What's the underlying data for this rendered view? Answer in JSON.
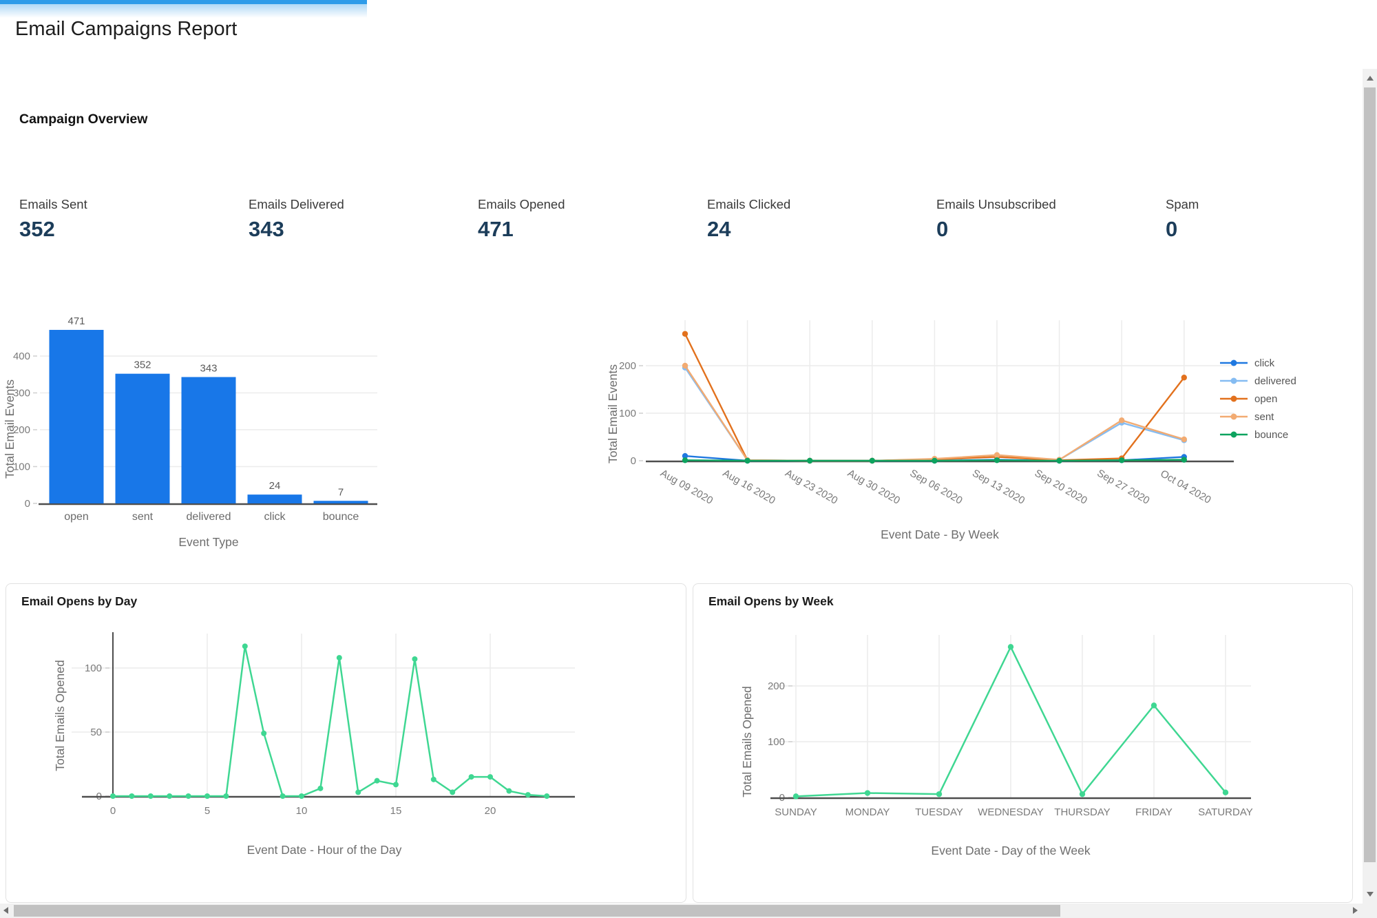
{
  "page": {
    "title": "Email Campaigns Report",
    "section_heading": "Campaign Overview"
  },
  "kpis": [
    {
      "label": "Emails Sent",
      "value": "352"
    },
    {
      "label": "Emails Delivered",
      "value": "343"
    },
    {
      "label": "Emails Opened",
      "value": "471"
    },
    {
      "label": "Emails Clicked",
      "value": "24"
    },
    {
      "label": "Emails Unsubscribed",
      "value": "0"
    },
    {
      "label": "Spam",
      "value": "0"
    }
  ],
  "colors": {
    "bar_blue": "#1877e8",
    "loading_bar": "#2e9ce9",
    "kpi_value_navy": "#1c3d5a",
    "mint_green": "#3fd792",
    "series_click": "#1f78e0",
    "series_delivered": "#85bcf2",
    "series_open": "#e2711d",
    "series_sent": "#f2ab72",
    "series_bounce": "#0da35f"
  },
  "chart_data": [
    {
      "id": "total-events-by-type",
      "type": "bar",
      "title": "",
      "categories": [
        "open",
        "sent",
        "delivered",
        "click",
        "bounce"
      ],
      "values": [
        471,
        352,
        343,
        24,
        7
      ],
      "data_labels": true,
      "xlabel": "Event Type",
      "ylabel": "Total Email Events",
      "yticks": [
        0,
        100,
        200,
        300,
        400
      ],
      "ylim": [
        0,
        480
      ],
      "color": "#1877e8",
      "grid": "horizontal"
    },
    {
      "id": "total-events-by-week",
      "type": "line",
      "title": "",
      "categories": [
        "Aug 09 2020",
        "Aug 16 2020",
        "Aug 23 2020",
        "Aug 30 2020",
        "Sep 06 2020",
        "Sep 13 2020",
        "Sep 20 2020",
        "Sep 27 2020",
        "Oct 04 2020"
      ],
      "series": [
        {
          "name": "click",
          "color": "#1f78e0",
          "values": [
            10,
            0,
            0,
            0,
            0,
            2,
            0,
            1,
            8
          ]
        },
        {
          "name": "delivered",
          "color": "#85bcf2",
          "values": [
            196,
            1,
            0,
            0,
            2,
            8,
            2,
            80,
            43
          ]
        },
        {
          "name": "open",
          "color": "#e2711d",
          "values": [
            267,
            1,
            0,
            0,
            3,
            8,
            1,
            5,
            175
          ]
        },
        {
          "name": "sent",
          "color": "#f2ab72",
          "values": [
            200,
            1,
            0,
            0,
            4,
            12,
            2,
            85,
            45
          ]
        },
        {
          "name": "bounce",
          "color": "#0da35f",
          "values": [
            1,
            0,
            0,
            0,
            0,
            1,
            0,
            1,
            2
          ]
        }
      ],
      "xlabel": "Event Date - By Week",
      "ylabel": "Total Email Events",
      "yticks": [
        0,
        100,
        200
      ],
      "ylim": [
        0,
        280
      ],
      "legend_position": "right",
      "markers": true
    },
    {
      "id": "opens-by-hour",
      "type": "line",
      "title": "Email Opens by Day",
      "x": [
        0,
        1,
        2,
        3,
        4,
        5,
        6,
        7,
        8,
        9,
        10,
        11,
        12,
        13,
        14,
        15,
        16,
        17,
        18,
        19,
        20,
        21,
        22,
        23
      ],
      "values": [
        0,
        0,
        0,
        0,
        0,
        0,
        0,
        117,
        49,
        0,
        0,
        6,
        108,
        3,
        12,
        9,
        107,
        13,
        3,
        15,
        15,
        4,
        1,
        0
      ],
      "xticks": [
        0,
        5,
        10,
        15,
        20
      ],
      "xlabel": "Event Date - Hour of the Day",
      "ylabel": "Total Emails Opened",
      "yticks": [
        0,
        50,
        100
      ],
      "ylim": [
        0,
        125
      ],
      "color": "#3fd792",
      "markers": true
    },
    {
      "id": "opens-by-day-of-week",
      "type": "line",
      "title": "Email Opens by Week",
      "categories": [
        "SUNDAY",
        "MONDAY",
        "TUESDAY",
        "WEDNESDAY",
        "THURSDAY",
        "FRIDAY",
        "SATURDAY"
      ],
      "values": [
        2,
        8,
        6,
        270,
        6,
        165,
        9
      ],
      "xlabel": "Event Date - Day of the Week",
      "ylabel": "Total Emails Opened",
      "yticks": [
        0,
        100,
        200
      ],
      "ylim": [
        0,
        290
      ],
      "color": "#3fd792",
      "markers": true
    }
  ]
}
